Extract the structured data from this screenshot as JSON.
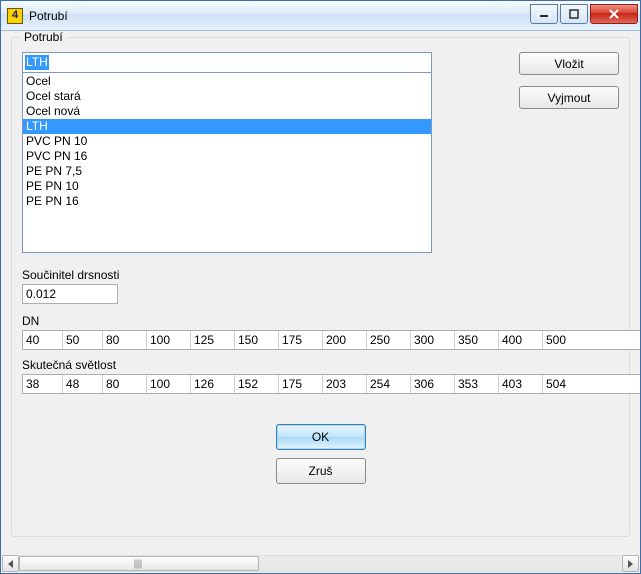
{
  "window": {
    "title": "Potrubí",
    "icon_glyph": "4"
  },
  "groupbox": {
    "legend": "Potrubí"
  },
  "combo": {
    "selected": "LTH"
  },
  "list": {
    "items": [
      "Ocel",
      "Ocel stará",
      "Ocel nová",
      "LTH",
      "PVC PN 10",
      "PVC PN 16",
      "PE PN 7,5",
      "PE PN 10",
      "PE PN 16"
    ],
    "selected_index": 3
  },
  "buttons": {
    "insert": "Vložit",
    "remove": "Vyjmout",
    "ok": "OK",
    "cancel": "Zruš"
  },
  "roughness": {
    "label": "Součinitel drsnosti",
    "value": "0.012"
  },
  "dn": {
    "label": "DN",
    "values": [
      "40",
      "50",
      "80",
      "100",
      "125",
      "150",
      "175",
      "200",
      "250",
      "300",
      "350",
      "400",
      "500"
    ]
  },
  "clear": {
    "label": "Skutečná světlost",
    "values": [
      "38",
      "48",
      "80",
      "100",
      "126",
      "152",
      "175",
      "203",
      "254",
      "306",
      "353",
      "403",
      "504"
    ]
  },
  "colors": {
    "selection_bg": "#3399ff",
    "selection_fg": "#ffffff",
    "panel_bg": "#f0f0f0",
    "border": "#abadb3",
    "close_red": "#d9432e"
  },
  "cell_width_classes": [
    "w-a",
    "w-b",
    "w-c",
    "w-d",
    "w-e",
    "w-f",
    "w-g",
    "w-h",
    "w-i",
    "w-j",
    "w-k",
    "w-l",
    "w-m"
  ]
}
